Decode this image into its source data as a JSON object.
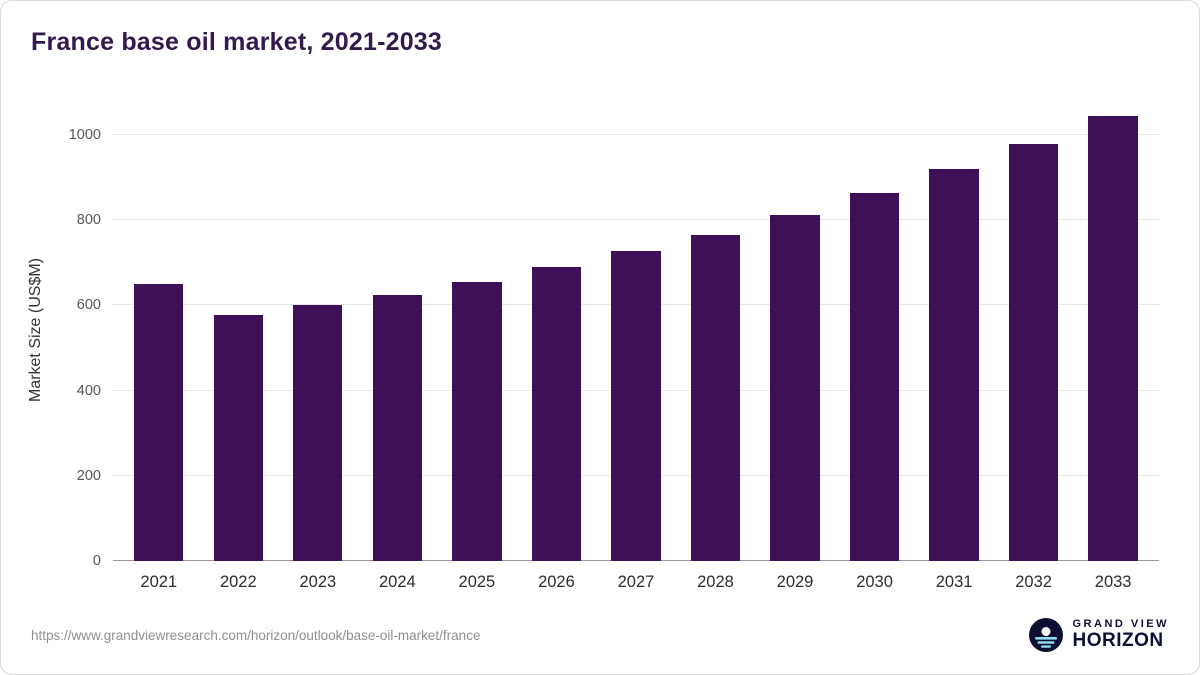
{
  "title": "France base oil market, 2021-2033",
  "footer": {
    "source_url": "https://www.grandviewresearch.com/horizon/outlook/base-oil-market/france",
    "brand_top": "GRAND VIEW",
    "brand_bottom": "HORIZON"
  },
  "chart_data": {
    "type": "bar",
    "title": "France base oil market, 2021-2033",
    "categories": [
      "2021",
      "2022",
      "2023",
      "2024",
      "2025",
      "2026",
      "2027",
      "2028",
      "2029",
      "2030",
      "2031",
      "2032",
      "2033"
    ],
    "values": [
      650,
      578,
      600,
      625,
      655,
      690,
      727,
      765,
      812,
      865,
      920,
      980,
      1045
    ],
    "xlabel": "",
    "ylabel": "Market Size (US$M)",
    "ylim": [
      0,
      1080
    ],
    "yticks": [
      0,
      200,
      400,
      600,
      800,
      1000
    ],
    "grid": true,
    "legend": false,
    "bar_color": "#3e1058"
  },
  "colors": {
    "title_text": "#321a4e",
    "bar": "#3e1058",
    "grid": "#e6e6e6",
    "axis_line": "#9a9a9a",
    "tick_text": "#555555",
    "url_text": "#8f8f8f",
    "brand_navy": "#0d1033",
    "logo_blue": "#8fdcf5"
  }
}
